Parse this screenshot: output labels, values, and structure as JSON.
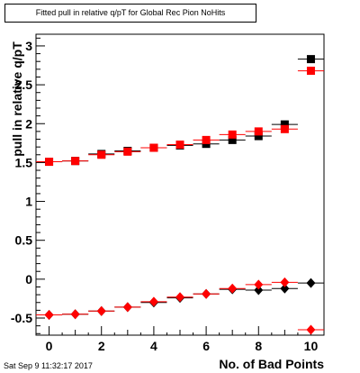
{
  "chart_data": {
    "type": "scatter",
    "title": "Fitted pull in relative q/pT for Global Rec Pion NoHits",
    "xlabel": "No. of Bad Points",
    "ylabel": "pull in relative q/pT",
    "xlim": [
      -0.5,
      10.5
    ],
    "ylim": [
      -0.72,
      3.15
    ],
    "x_ticks": [
      0,
      2,
      4,
      6,
      8,
      10
    ],
    "x_tick_labels": [
      "0",
      "2",
      "4",
      "6",
      "8",
      "10"
    ],
    "y_ticks": [
      -0.5,
      0,
      0.5,
      1,
      1.5,
      2,
      2.5,
      3
    ],
    "y_tick_labels": [
      "-0.5",
      "0",
      "0.5",
      "1",
      "1.5",
      "2",
      "2.5",
      "3"
    ],
    "grid": false,
    "series": [
      {
        "marker": "square",
        "color": "#000000",
        "x": [
          0,
          1,
          2,
          3,
          4,
          5,
          6,
          7,
          8,
          9,
          10
        ],
        "y": [
          1.51,
          1.52,
          1.61,
          1.65,
          1.69,
          1.72,
          1.74,
          1.79,
          1.84,
          1.99,
          2.83
        ]
      },
      {
        "marker": "square",
        "color": "#ff0000",
        "x": [
          0,
          1,
          2,
          3,
          4,
          5,
          6,
          7,
          8,
          9,
          10
        ],
        "y": [
          1.51,
          1.52,
          1.6,
          1.64,
          1.69,
          1.73,
          1.79,
          1.86,
          1.9,
          1.93,
          2.68
        ]
      },
      {
        "marker": "diamond",
        "color": "#000000",
        "x": [
          0,
          1,
          2,
          3,
          4,
          5,
          6,
          7,
          8,
          9,
          10
        ],
        "y": [
          -0.46,
          -0.45,
          -0.41,
          -0.36,
          -0.3,
          -0.24,
          -0.19,
          -0.13,
          -0.14,
          -0.12,
          -0.05
        ]
      },
      {
        "marker": "diamond",
        "color": "#ff0000",
        "x": [
          0,
          1,
          2,
          3,
          4,
          5,
          6,
          7,
          8,
          9,
          10
        ],
        "y": [
          -0.46,
          -0.45,
          -0.41,
          -0.36,
          -0.29,
          -0.23,
          -0.19,
          -0.12,
          -0.07,
          -0.04,
          -0.65
        ]
      }
    ]
  },
  "footer": {
    "date": "Sat Sep  9 11:32:17 2017"
  }
}
